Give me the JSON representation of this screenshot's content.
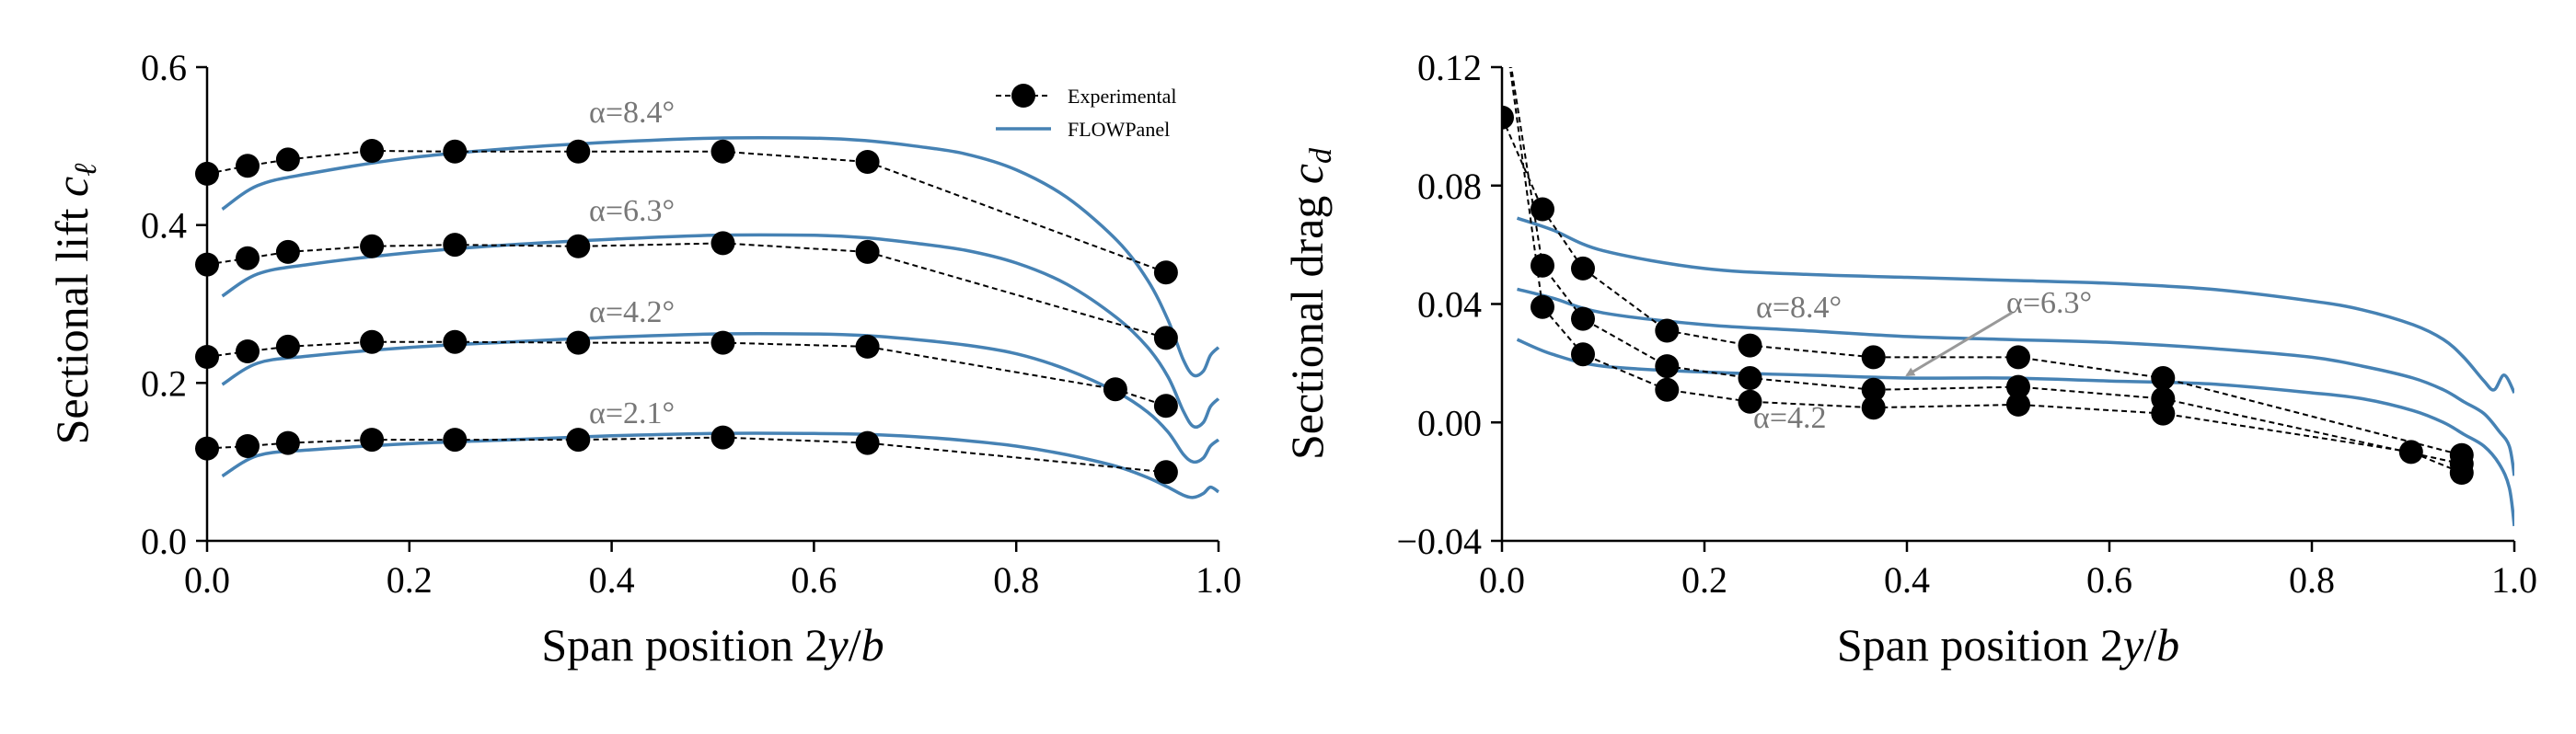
{
  "chart_data": [
    {
      "type": "line",
      "xlabel": "Span position 2y/b",
      "ylabel": "Sectional lift cℓ",
      "xlim": [
        0.0,
        1.0
      ],
      "ylim": [
        0.0,
        0.6
      ],
      "xticks": [
        "0.0",
        "0.2",
        "0.4",
        "0.6",
        "0.8",
        "1.0"
      ],
      "yticks": [
        "0.0",
        "0.2",
        "0.4",
        "0.6"
      ],
      "grid": false,
      "legend": {
        "placement": "top-right",
        "entries": [
          "Experimental",
          "FLOWPanel"
        ]
      },
      "annotations": [
        "α=8.4°",
        "α=6.3°",
        "α=4.2°",
        "α=2.1°"
      ],
      "series": [
        {
          "legend": "Experimental",
          "alpha": 8.4,
          "x": [
            0.0,
            0.04,
            0.08,
            0.163,
            0.245,
            0.367,
            0.51,
            0.653,
            0.948
          ],
          "y": [
            0.465,
            0.475,
            0.483,
            0.494,
            0.493,
            0.493,
            0.493,
            0.48,
            0.34
          ]
        },
        {
          "legend": "Experimental",
          "alpha": 6.3,
          "x": [
            0.0,
            0.04,
            0.08,
            0.163,
            0.245,
            0.367,
            0.51,
            0.653,
            0.948
          ],
          "y": [
            0.35,
            0.358,
            0.366,
            0.373,
            0.375,
            0.373,
            0.377,
            0.366,
            0.257
          ]
        },
        {
          "legend": "Experimental",
          "alpha": 4.2,
          "x": [
            0.0,
            0.04,
            0.08,
            0.163,
            0.245,
            0.367,
            0.51,
            0.653,
            0.898,
            0.948
          ],
          "y": [
            0.233,
            0.24,
            0.246,
            0.252,
            0.252,
            0.251,
            0.251,
            0.246,
            0.192,
            0.171
          ]
        },
        {
          "legend": "Experimental",
          "alpha": 2.1,
          "x": [
            0.0,
            0.04,
            0.08,
            0.163,
            0.245,
            0.367,
            0.51,
            0.653,
            0.948
          ],
          "y": [
            0.117,
            0.12,
            0.124,
            0.128,
            0.128,
            0.128,
            0.131,
            0.124,
            0.087
          ]
        },
        {
          "legend": "FLOWPanel",
          "alpha": 8.4,
          "x": [
            0.015,
            0.05,
            0.1,
            0.2,
            0.3,
            0.4,
            0.5,
            0.6,
            0.65,
            0.7,
            0.75,
            0.8,
            0.85,
            0.9,
            0.93,
            0.95,
            0.965,
            0.975,
            0.985,
            0.992,
            1.0
          ],
          "y": [
            0.42,
            0.45,
            0.465,
            0.485,
            0.497,
            0.505,
            0.51,
            0.51,
            0.507,
            0.5,
            0.49,
            0.47,
            0.435,
            0.38,
            0.33,
            0.28,
            0.23,
            0.21,
            0.215,
            0.235,
            0.245
          ]
        },
        {
          "legend": "FLOWPanel",
          "alpha": 6.3,
          "x": [
            0.015,
            0.05,
            0.1,
            0.2,
            0.3,
            0.4,
            0.5,
            0.6,
            0.65,
            0.7,
            0.75,
            0.8,
            0.85,
            0.9,
            0.93,
            0.95,
            0.965,
            0.975,
            0.985,
            0.992,
            1.0
          ],
          "y": [
            0.31,
            0.338,
            0.35,
            0.365,
            0.375,
            0.382,
            0.387,
            0.387,
            0.384,
            0.377,
            0.368,
            0.352,
            0.325,
            0.282,
            0.245,
            0.208,
            0.165,
            0.145,
            0.15,
            0.17,
            0.18
          ]
        },
        {
          "legend": "FLOWPanel",
          "alpha": 4.2,
          "x": [
            0.015,
            0.05,
            0.1,
            0.2,
            0.3,
            0.4,
            0.5,
            0.6,
            0.65,
            0.7,
            0.75,
            0.8,
            0.85,
            0.9,
            0.93,
            0.95,
            0.965,
            0.975,
            0.985,
            0.992,
            1.0
          ],
          "y": [
            0.198,
            0.225,
            0.234,
            0.245,
            0.252,
            0.258,
            0.262,
            0.262,
            0.26,
            0.255,
            0.248,
            0.237,
            0.217,
            0.188,
            0.163,
            0.138,
            0.11,
            0.1,
            0.105,
            0.12,
            0.128
          ]
        },
        {
          "legend": "FLOWPanel",
          "alpha": 2.1,
          "x": [
            0.015,
            0.05,
            0.1,
            0.2,
            0.3,
            0.4,
            0.5,
            0.6,
            0.65,
            0.7,
            0.75,
            0.8,
            0.85,
            0.9,
            0.93,
            0.95,
            0.965,
            0.975,
            0.985,
            0.992,
            1.0
          ],
          "y": [
            0.082,
            0.108,
            0.115,
            0.123,
            0.128,
            0.133,
            0.136,
            0.136,
            0.135,
            0.132,
            0.127,
            0.12,
            0.109,
            0.094,
            0.08,
            0.068,
            0.058,
            0.055,
            0.06,
            0.068,
            0.062
          ]
        }
      ]
    },
    {
      "type": "line",
      "xlabel": "Span position 2y/b",
      "ylabel": "Sectional drag cd",
      "xlim": [
        0.0,
        1.0
      ],
      "ylim": [
        -0.04,
        0.12
      ],
      "xticks": [
        "0.0",
        "0.2",
        "0.4",
        "0.6",
        "0.8",
        "1.0"
      ],
      "yticks": [
        "−0.04",
        "0.00",
        "0.04",
        "0.08",
        "0.12"
      ],
      "grid": false,
      "annotations": [
        "α=8.4°",
        "α=6.3°",
        "α=4.2"
      ],
      "series": [
        {
          "legend": "Experimental",
          "alpha": 8.4,
          "x": [
            0.0,
            0.04,
            0.08,
            0.163,
            0.245,
            0.367,
            0.51,
            0.653,
            0.948
          ],
          "y": [
            0.103,
            0.072,
            0.052,
            0.031,
            0.026,
            0.022,
            0.022,
            0.015,
            -0.011
          ]
        },
        {
          "legend": "Experimental",
          "alpha": 6.3,
          "x": [
            0.0,
            0.04,
            0.08,
            0.163,
            0.245,
            0.367,
            0.51,
            0.653,
            0.948
          ],
          "y": [
            0.14,
            0.053,
            0.035,
            0.019,
            0.015,
            0.011,
            0.012,
            0.008,
            -0.014
          ]
        },
        {
          "legend": "Experimental",
          "alpha": 4.2,
          "x": [
            0.0,
            0.04,
            0.08,
            0.163,
            0.245,
            0.367,
            0.51,
            0.653,
            0.898,
            0.948
          ],
          "y": [
            0.14,
            0.039,
            0.023,
            0.011,
            0.007,
            0.005,
            0.006,
            0.003,
            -0.01,
            -0.017
          ]
        },
        {
          "legend": "FLOWPanel",
          "alpha": 8.4,
          "x": [
            0.015,
            0.05,
            0.1,
            0.2,
            0.3,
            0.4,
            0.5,
            0.6,
            0.7,
            0.8,
            0.85,
            0.9,
            0.93,
            0.95,
            0.97,
            0.98,
            0.99,
            1.0
          ],
          "y": [
            0.069,
            0.065,
            0.058,
            0.052,
            0.05,
            0.049,
            0.048,
            0.047,
            0.045,
            0.041,
            0.038,
            0.033,
            0.028,
            0.022,
            0.014,
            0.011,
            0.016,
            0.01
          ]
        },
        {
          "legend": "FLOWPanel",
          "alpha": 6.3,
          "x": [
            0.015,
            0.05,
            0.1,
            0.2,
            0.3,
            0.4,
            0.5,
            0.6,
            0.7,
            0.8,
            0.85,
            0.9,
            0.93,
            0.95,
            0.97,
            0.985,
            0.995,
            1.0
          ],
          "y": [
            0.045,
            0.042,
            0.037,
            0.033,
            0.031,
            0.029,
            0.028,
            0.027,
            0.025,
            0.022,
            0.019,
            0.015,
            0.011,
            0.007,
            0.003,
            -0.003,
            -0.008,
            -0.018
          ]
        },
        {
          "legend": "FLOWPanel",
          "alpha": 4.2,
          "x": [
            0.015,
            0.05,
            0.1,
            0.2,
            0.3,
            0.4,
            0.5,
            0.6,
            0.7,
            0.8,
            0.85,
            0.9,
            0.93,
            0.95,
            0.97,
            0.985,
            0.995,
            1.0
          ],
          "y": [
            0.028,
            0.023,
            0.019,
            0.017,
            0.016,
            0.015,
            0.015,
            0.014,
            0.013,
            0.01,
            0.008,
            0.004,
            0.0,
            -0.004,
            -0.008,
            -0.014,
            -0.022,
            -0.035
          ]
        }
      ]
    }
  ],
  "colors": {
    "model": "#4682b4",
    "experiment": "#000000",
    "annotation": "#777777",
    "arrow": "#999999"
  }
}
